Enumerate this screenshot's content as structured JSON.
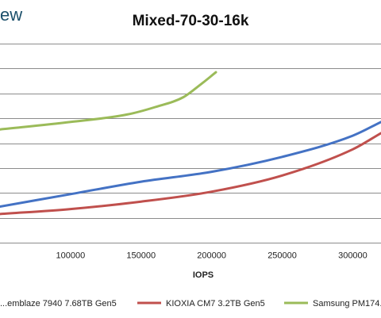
{
  "brand": {
    "text": "ew",
    "color": "#1b4f6a"
  },
  "chart_data": {
    "type": "line",
    "title": "Mixed-70-30-16k",
    "xlabel": "IOPS",
    "ylabel": "",
    "grid": true,
    "legend_position": "bottom",
    "xlim": [
      50000,
      320000
    ],
    "ylim": [
      0,
      8
    ],
    "x_ticks": [
      100000,
      150000,
      200000,
      250000,
      300000
    ],
    "gridlines_y": [
      1,
      2,
      3,
      4,
      5,
      6,
      7,
      8
    ],
    "series": [
      {
        "name": "...emblaze 7940 7.68TB Gen5",
        "color": "#4472c4",
        "x": [
          50000,
          100000,
          150000,
          200000,
          250000,
          300000,
          320000
        ],
        "y": [
          1.45,
          1.95,
          2.45,
          2.85,
          3.45,
          4.3,
          4.85
        ]
      },
      {
        "name": "KIOXIA CM7 3.2TB Gen5",
        "color": "#c0504d",
        "x": [
          50000,
          100000,
          150000,
          200000,
          250000,
          300000,
          320000
        ],
        "y": [
          1.15,
          1.35,
          1.65,
          2.05,
          2.7,
          3.75,
          4.4
        ]
      },
      {
        "name": "Samsung PM174...",
        "color": "#9bbb59",
        "x": [
          50000,
          100000,
          140000,
          160000,
          180000,
          192000,
          203000
        ],
        "y": [
          4.55,
          4.85,
          5.15,
          5.45,
          5.85,
          6.35,
          6.85
        ]
      }
    ]
  }
}
